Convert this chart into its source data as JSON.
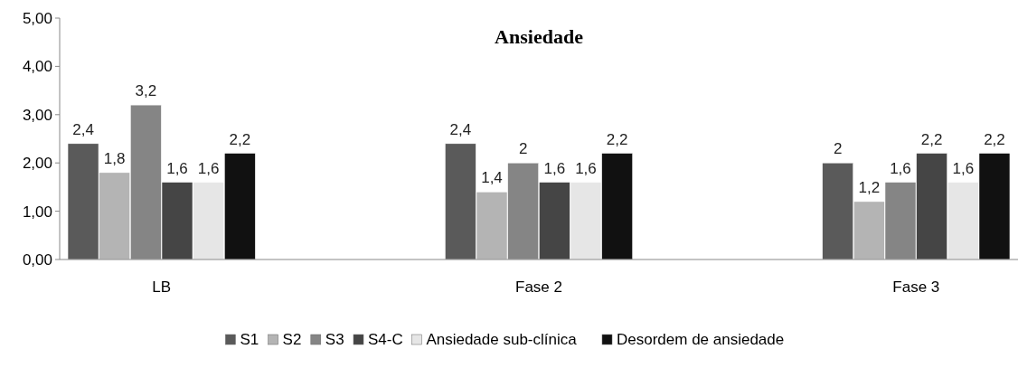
{
  "chart_data": {
    "type": "bar",
    "title": "Ansiedade",
    "categories": [
      "LB",
      "Fase 2",
      "Fase 3"
    ],
    "series": [
      {
        "name": "S1",
        "color": "#5a5a5a",
        "values": [
          2.4,
          2.4,
          2
        ],
        "value_labels": [
          "2,4",
          "2,4",
          "2"
        ]
      },
      {
        "name": "S2",
        "color": "#b4b4b4",
        "values": [
          1.8,
          1.4,
          1.2
        ],
        "value_labels": [
          "1,8",
          "1,4",
          "1,2"
        ]
      },
      {
        "name": "S3",
        "color": "#858585",
        "values": [
          3.2,
          2,
          1.6
        ],
        "value_labels": [
          "3,2",
          "2",
          "1,6"
        ]
      },
      {
        "name": "S4-C",
        "color": "#454545",
        "values": [
          1.6,
          1.6,
          2.2
        ],
        "value_labels": [
          "1,6",
          "1,6",
          "2,2"
        ]
      },
      {
        "name": "Ansiedade sub-clínica",
        "color": "#e6e6e6",
        "values": [
          1.6,
          1.6,
          1.6
        ],
        "value_labels": [
          "1,6",
          "1,6",
          "1,6"
        ]
      },
      {
        "name": "Desordem de ansiedade",
        "color": "#111111",
        "values": [
          2.2,
          2.2,
          2.2
        ],
        "value_labels": [
          "2,2",
          "2,2",
          "2,2"
        ]
      }
    ],
    "ylim": [
      0,
      5
    ],
    "yticks": [
      {
        "value": 0,
        "label": "0,00"
      },
      {
        "value": 1,
        "label": "1,00"
      },
      {
        "value": 2,
        "label": "2,00"
      },
      {
        "value": 3,
        "label": "3,00"
      },
      {
        "value": 4,
        "label": "4,00"
      },
      {
        "value": 5,
        "label": "5,00"
      }
    ],
    "legend": "bottom",
    "grid": false
  }
}
